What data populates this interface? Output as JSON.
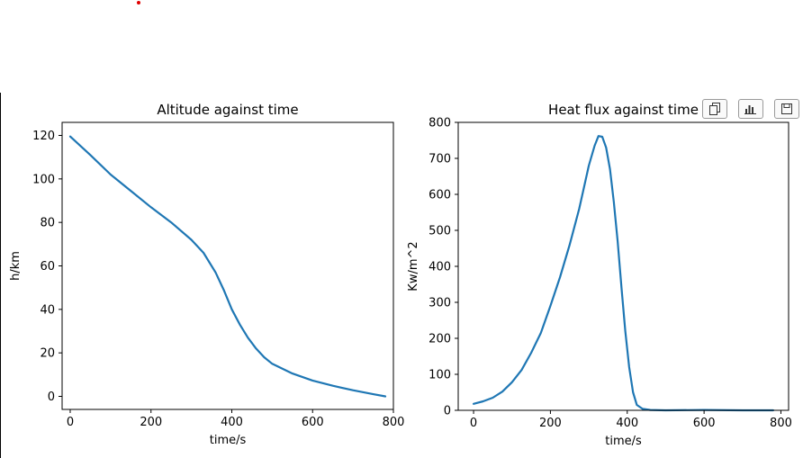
{
  "chart_data": [
    {
      "type": "line",
      "title": "Altitude against time",
      "xlabel": "time/s",
      "ylabel": "h/km",
      "xlim": [
        -20,
        800
      ],
      "ylim": [
        -6,
        126
      ],
      "xticks": [
        0,
        200,
        400,
        600,
        800
      ],
      "yticks": [
        0,
        20,
        40,
        60,
        80,
        100,
        120
      ],
      "series": [
        {
          "color": "#1f77b4",
          "x": [
            0,
            50,
            100,
            150,
            200,
            250,
            300,
            330,
            360,
            380,
            400,
            420,
            440,
            460,
            480,
            500,
            550,
            600,
            650,
            700,
            750,
            780
          ],
          "y": [
            119.5,
            111,
            102,
            94.5,
            87,
            80,
            72,
            66,
            57,
            49,
            40,
            33,
            27,
            22,
            18,
            15,
            10.5,
            7.3,
            4.9,
            2.8,
            1.0,
            0
          ]
        }
      ]
    },
    {
      "type": "line",
      "title": "Heat flux against time",
      "xlabel": "time/s",
      "ylabel": "Kw/m^2",
      "xlim": [
        -40,
        820
      ],
      "ylim": [
        0,
        800
      ],
      "xticks": [
        0,
        200,
        400,
        600,
        800
      ],
      "yticks": [
        0,
        100,
        200,
        300,
        400,
        500,
        600,
        700,
        800
      ],
      "series": [
        {
          "color": "#1f77b4",
          "x": [
            0,
            25,
            50,
            75,
            100,
            125,
            150,
            175,
            200,
            225,
            250,
            275,
            300,
            315,
            325,
            335,
            345,
            355,
            365,
            375,
            385,
            395,
            405,
            415,
            425,
            440,
            460,
            500,
            600,
            700,
            780
          ],
          "y": [
            18,
            25,
            35,
            52,
            78,
            112,
            160,
            215,
            290,
            370,
            460,
            560,
            680,
            735,
            762,
            760,
            730,
            670,
            580,
            470,
            340,
            220,
            120,
            50,
            15,
            4,
            1,
            0,
            1,
            0,
            0
          ]
        }
      ]
    }
  ],
  "toolbar": {
    "buttons": [
      {
        "icon": "copy-icon"
      },
      {
        "icon": "chart-icon"
      },
      {
        "icon": "save-icon"
      }
    ]
  }
}
